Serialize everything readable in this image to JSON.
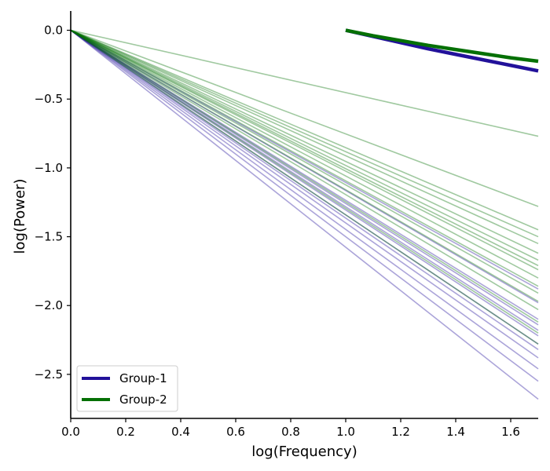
{
  "chart_data": {
    "type": "line",
    "title": "",
    "xlabel": "log(Frequency)",
    "ylabel": "log(Power)",
    "xlim": [
      0.0,
      1.7
    ],
    "ylim": [
      -2.82,
      0.14
    ],
    "grid": false,
    "legend_placement": "bottom-left",
    "x_ticks": [
      {
        "value": 0.0,
        "label": "0.0"
      },
      {
        "value": 0.2,
        "label": "0.2"
      },
      {
        "value": 0.4,
        "label": "0.4"
      },
      {
        "value": 0.6,
        "label": "0.6"
      },
      {
        "value": 0.8,
        "label": "0.8"
      },
      {
        "value": 1.0,
        "label": "1.0"
      },
      {
        "value": 1.2,
        "label": "1.2"
      },
      {
        "value": 1.4,
        "label": "1.4"
      },
      {
        "value": 1.6,
        "label": "1.6"
      }
    ],
    "y_ticks": [
      {
        "value": 0.0,
        "label": "0.0"
      },
      {
        "value": -0.5,
        "label": "−0.5"
      },
      {
        "value": -1.0,
        "label": "−1.0"
      },
      {
        "value": -1.5,
        "label": "−1.5"
      },
      {
        "value": -2.0,
        "label": "−2.0"
      },
      {
        "value": -2.5,
        "label": "−2.5"
      }
    ],
    "groups": [
      {
        "name": "Group-1",
        "color": "#22119a",
        "individual_end_y": [
          -2.68,
          -2.55,
          -2.46,
          -2.38,
          -2.32,
          -2.28,
          -2.22,
          -2.18,
          -2.14,
          -2.1,
          -1.98,
          -1.88
        ],
        "mean_curve": {
          "x": [
            1.0,
            1.1,
            1.2,
            1.3,
            1.4,
            1.5,
            1.6,
            1.7
          ],
          "y": [
            0.0,
            -0.045,
            -0.09,
            -0.135,
            -0.175,
            -0.215,
            -0.255,
            -0.295
          ]
        }
      },
      {
        "name": "Group-2",
        "color": "#057005",
        "individual_end_y": [
          -0.77,
          -1.28,
          -1.45,
          -1.5,
          -1.55,
          -1.62,
          -1.67,
          -1.71,
          -1.74,
          -1.8,
          -1.86,
          -1.91,
          -1.97,
          -2.03,
          -2.12,
          -2.2,
          -2.28
        ],
        "mean_curve": {
          "x": [
            1.0,
            1.1,
            1.2,
            1.3,
            1.4,
            1.5,
            1.6,
            1.7
          ],
          "y": [
            0.0,
            -0.04,
            -0.075,
            -0.11,
            -0.14,
            -0.17,
            -0.2,
            -0.225
          ]
        }
      }
    ]
  }
}
